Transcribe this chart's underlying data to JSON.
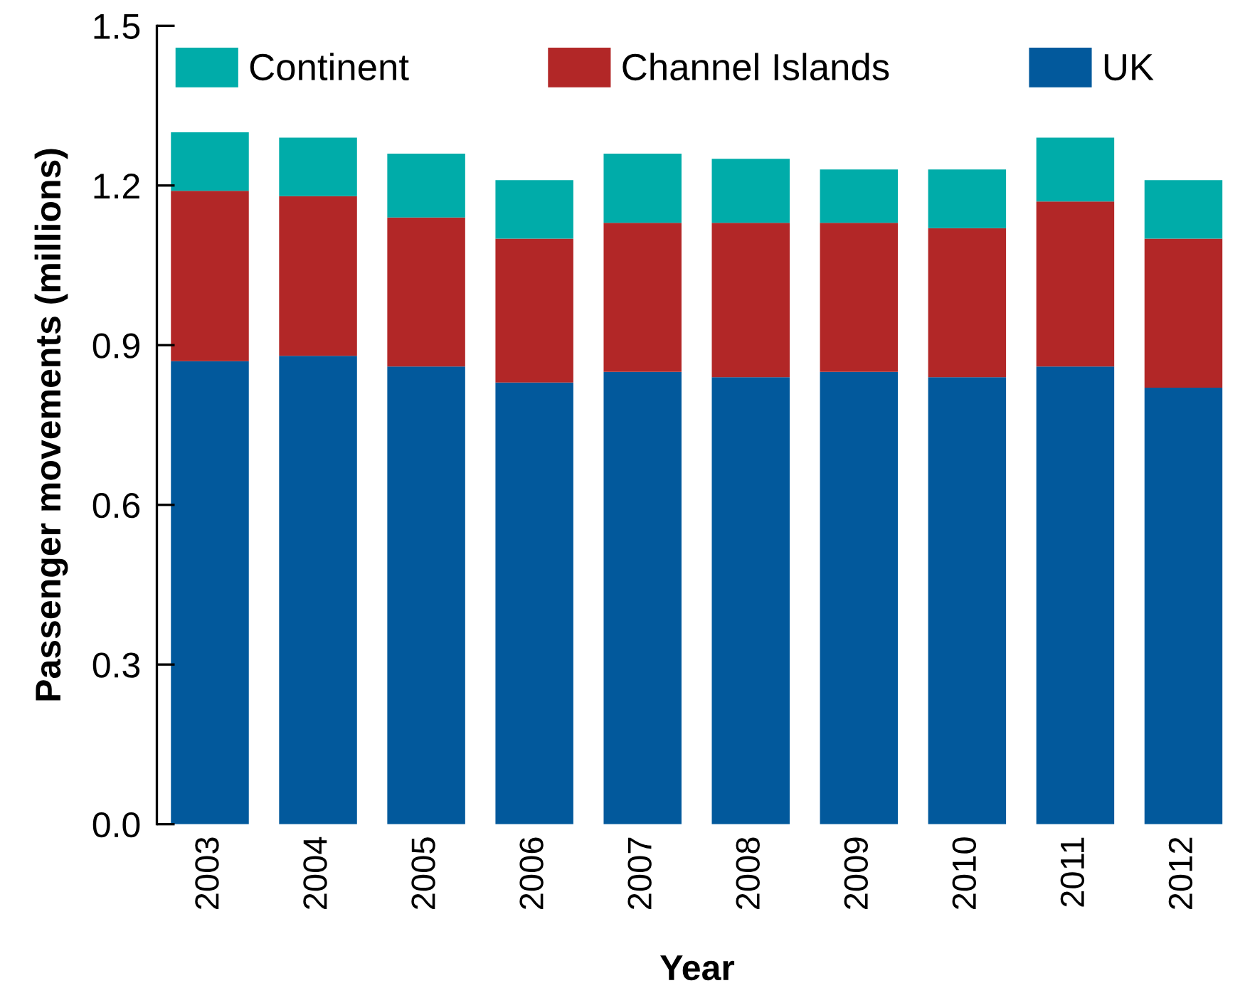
{
  "chart_data": {
    "type": "bar",
    "stacked": true,
    "xlabel": "Year",
    "ylabel": "Passenger movements (millions)",
    "categories": [
      "2003",
      "2004",
      "2005",
      "2006",
      "2007",
      "2008",
      "2009",
      "2010",
      "2011",
      "2012"
    ],
    "series": [
      {
        "name": "UK",
        "color": "#02599c",
        "values": [
          0.87,
          0.88,
          0.86,
          0.83,
          0.85,
          0.84,
          0.85,
          0.84,
          0.86,
          0.82
        ]
      },
      {
        "name": "Channel Islands",
        "color": "#b22727",
        "values": [
          0.32,
          0.3,
          0.28,
          0.27,
          0.28,
          0.29,
          0.28,
          0.28,
          0.31,
          0.28
        ]
      },
      {
        "name": "Continent",
        "color": "#00aca9",
        "values": [
          0.11,
          0.11,
          0.12,
          0.11,
          0.13,
          0.12,
          0.1,
          0.11,
          0.12,
          0.11
        ]
      }
    ],
    "ylim": [
      0,
      1.5
    ],
    "yticks": [
      {
        "value": 0,
        "label": "0.0"
      },
      0.3,
      0.6,
      0.9,
      1.2,
      1.5
    ],
    "grid": false,
    "legend": "top"
  }
}
